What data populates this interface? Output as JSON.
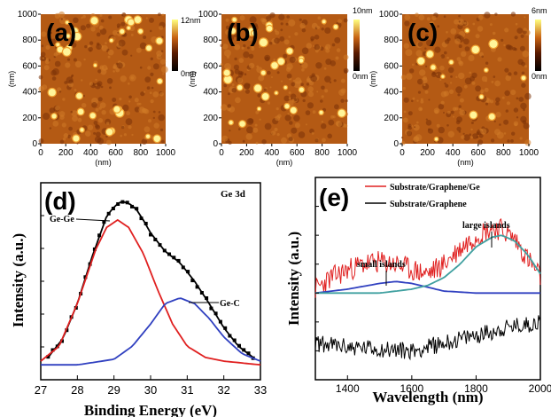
{
  "panels": {
    "a": {
      "label": "(a)",
      "colorbar_max": "12nm",
      "colorbar_min": "0nm"
    },
    "b": {
      "label": "(b)",
      "colorbar_max": "10nm",
      "colorbar_min": "0nm"
    },
    "c": {
      "label": "(c)",
      "colorbar_max": "6nm",
      "colorbar_min": "0nm"
    }
  },
  "afm_axes": {
    "x_ticks": [
      "0",
      "200",
      "400",
      "600",
      "800",
      "1000"
    ],
    "y_ticks": [
      "0",
      "200",
      "400",
      "600",
      "800",
      "1000"
    ],
    "x_unit": "(nm)",
    "y_unit": "(nm)"
  },
  "afm_colors": {
    "dark": "#1a0500",
    "mid": "#b45a14",
    "bright": "#fff59a"
  },
  "chart_data": [
    {
      "type": "line",
      "panel": "(d)",
      "title": "Ge 3d",
      "xlabel": "Binding Energy (eV)",
      "ylabel": "Intensity (a.u.)",
      "xlim": [
        27,
        33
      ],
      "x_ticks": [
        "27",
        "28",
        "29",
        "30",
        "31",
        "32",
        "33"
      ],
      "annotations": [
        "Ge-Ge",
        "Ge-C"
      ],
      "series": [
        {
          "color": "#000000",
          "style": "squares+line",
          "x": [
            27.2,
            27.6,
            28.0,
            28.4,
            28.8,
            29.0,
            29.2,
            29.4,
            29.6,
            29.8,
            30.0,
            30.4,
            30.8,
            31.2,
            31.6,
            32.0,
            32.4,
            32.8
          ],
          "y": [
            4,
            14,
            33,
            58,
            80,
            85,
            88,
            87,
            84,
            78,
            71,
            61,
            55,
            45,
            33,
            20,
            10,
            4
          ]
        },
        {
          "color": "#e02020",
          "x": [
            27.0,
            27.5,
            28.0,
            28.5,
            28.8,
            29.1,
            29.4,
            29.8,
            30.2,
            30.6,
            31.0,
            31.5,
            32.0,
            32.5,
            33.0
          ],
          "y": [
            2,
            10,
            33,
            62,
            74,
            78,
            74,
            60,
            40,
            22,
            10,
            4,
            2,
            1,
            0
          ]
        },
        {
          "color": "#3040c0",
          "x": [
            27.0,
            28.0,
            29.0,
            29.5,
            30.0,
            30.4,
            30.8,
            31.2,
            31.6,
            32.0,
            32.5,
            33.0
          ],
          "y": [
            0,
            0,
            3,
            10,
            22,
            33,
            36,
            33,
            25,
            15,
            6,
            2
          ]
        }
      ]
    },
    {
      "type": "line",
      "panel": "(e)",
      "xlabel": "Wavelength (nm)",
      "ylabel": "Intensity (a.u.)",
      "xlim": [
        1300,
        2000
      ],
      "x_ticks": [
        "1400",
        "1600",
        "1800",
        "2000"
      ],
      "annotations": [
        "small islands",
        "large islands"
      ],
      "legend_position": "top",
      "series": [
        {
          "name": "Substrate/Graphene/Ge",
          "color": "#e02020",
          "style": "noisy",
          "x": [
            1300,
            1350,
            1400,
            1450,
            1500,
            1550,
            1600,
            1650,
            1700,
            1750,
            1800,
            1850,
            1880,
            1920,
            1960,
            2000
          ],
          "y": [
            42,
            48,
            52,
            55,
            56,
            55,
            52,
            50,
            55,
            63,
            70,
            74,
            73,
            68,
            58,
            48
          ]
        },
        {
          "name": "Substrate/Graphene",
          "color": "#000000",
          "style": "noisy",
          "x": [
            1300,
            1400,
            1500,
            1600,
            1700,
            1800,
            1900,
            2000
          ],
          "y": [
            14,
            12,
            11,
            10,
            14,
            18,
            22,
            25
          ]
        },
        {
          "color": "#3040c0",
          "x": [
            1300,
            1400,
            1500,
            1550,
            1600,
            1650,
            1700,
            1800,
            1900,
            2000
          ],
          "y": [
            40,
            42,
            45,
            46,
            45,
            43,
            41,
            40,
            40,
            40
          ]
        },
        {
          "color": "#40a0a0",
          "x": [
            1300,
            1500,
            1600,
            1650,
            1700,
            1750,
            1800,
            1850,
            1880,
            1920,
            1960,
            2000
          ],
          "y": [
            40,
            40,
            42,
            44,
            48,
            55,
            64,
            69,
            70,
            67,
            60,
            50
          ]
        }
      ]
    }
  ]
}
